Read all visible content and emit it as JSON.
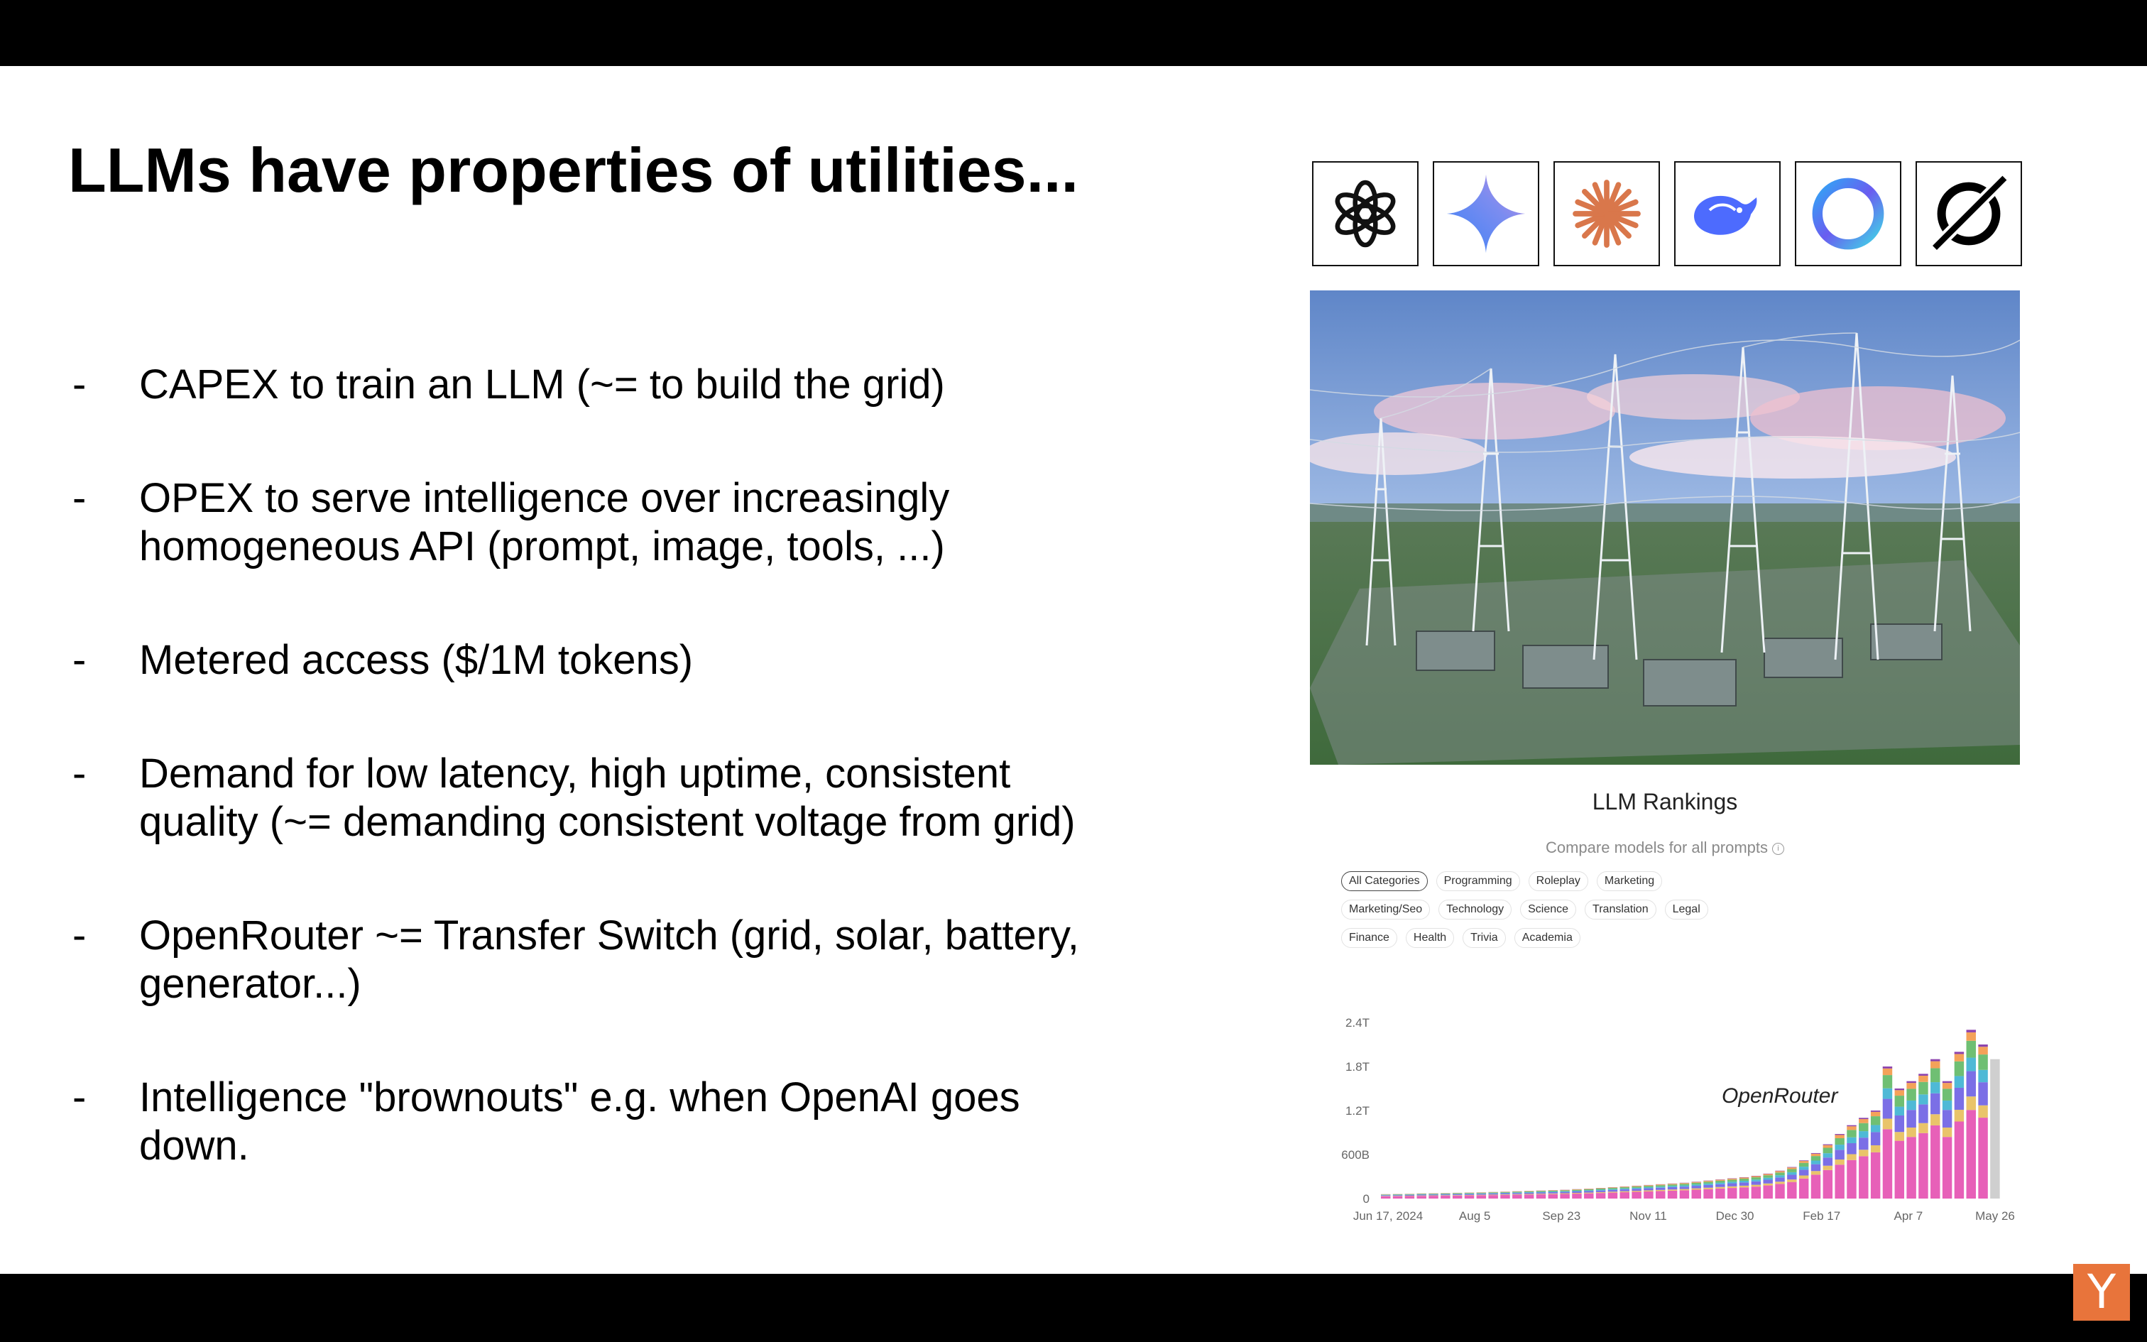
{
  "slide": {
    "title": "LLMs have properties of utilities...",
    "bullets": [
      {
        "dash": "-",
        "text": "CAPEX to train an LLM (~= to build the grid)"
      },
      {
        "dash": "-",
        "text": "OPEX to serve intelligence over increasingly\nhomogeneous API (prompt, image, tools, ...)"
      },
      {
        "dash": "-",
        "text": "Metered access ($/1M tokens)"
      },
      {
        "dash": "-",
        "text": "Demand for low latency, high uptime, consistent\nquality (~= demanding consistent voltage from grid)"
      },
      {
        "dash": "-",
        "text": "OpenRouter ~= Transfer Switch (grid, solar, battery,\ngenerator...)"
      },
      {
        "dash": "-",
        "text": "Intelligence \"brownouts\" e.g. when OpenAI goes\ndown."
      }
    ]
  },
  "logos": [
    "openai-logo",
    "gemini-logo",
    "anthropic-claude-logo",
    "deepseek-logo",
    "meta-ai-logo",
    "xai-grok-logo"
  ],
  "photo": {
    "subject": "power-grid-substation-photo"
  },
  "rankings": {
    "title": "LLM Rankings",
    "subtitle": "Compare models for all prompts",
    "info_icon": "i",
    "categories": [
      "All Categories",
      "Programming",
      "Roleplay",
      "Marketing",
      "Marketing/Seo",
      "Technology",
      "Science",
      "Translation",
      "Legal",
      "Finance",
      "Health",
      "Trivia",
      "Academia"
    ],
    "active_category": "All Categories"
  },
  "chart_data": {
    "type": "bar",
    "stacked": true,
    "annotation": "OpenRouter",
    "y_ticks": [
      "2.4T",
      "1.8T",
      "1.2T",
      "600B",
      "0"
    ],
    "x_ticks": [
      "Jun 17, 2024",
      "Aug 5",
      "Sep 23",
      "Nov 11",
      "Dec 30",
      "Feb 17",
      "Apr 7",
      "May 26"
    ],
    "ylim": [
      0,
      2400
    ],
    "y_unit": "B tokens",
    "weeks": 52,
    "totals": [
      60,
      62,
      65,
      70,
      72,
      75,
      78,
      82,
      85,
      90,
      95,
      100,
      105,
      110,
      115,
      120,
      128,
      135,
      145,
      155,
      165,
      175,
      185,
      195,
      205,
      215,
      230,
      245,
      260,
      275,
      290,
      310,
      340,
      380,
      430,
      520,
      620,
      740,
      880,
      1000,
      1100,
      1200,
      1800,
      1500,
      1600,
      1700,
      1900,
      1600,
      2000,
      2300,
      2100,
      1900
    ],
    "series_colors": [
      "#e760b8",
      "#e9c46a",
      "#7b6fe6",
      "#4fb9d6",
      "#6fbf73",
      "#f4a259",
      "#8e44ad"
    ],
    "series_shares": [
      0.5,
      0.08,
      0.15,
      0.08,
      0.1,
      0.05,
      0.04
    ],
    "partial_week_color": "#cfcfcf"
  },
  "brand_badge": {
    "text": "Y",
    "color": "#e8743b"
  }
}
